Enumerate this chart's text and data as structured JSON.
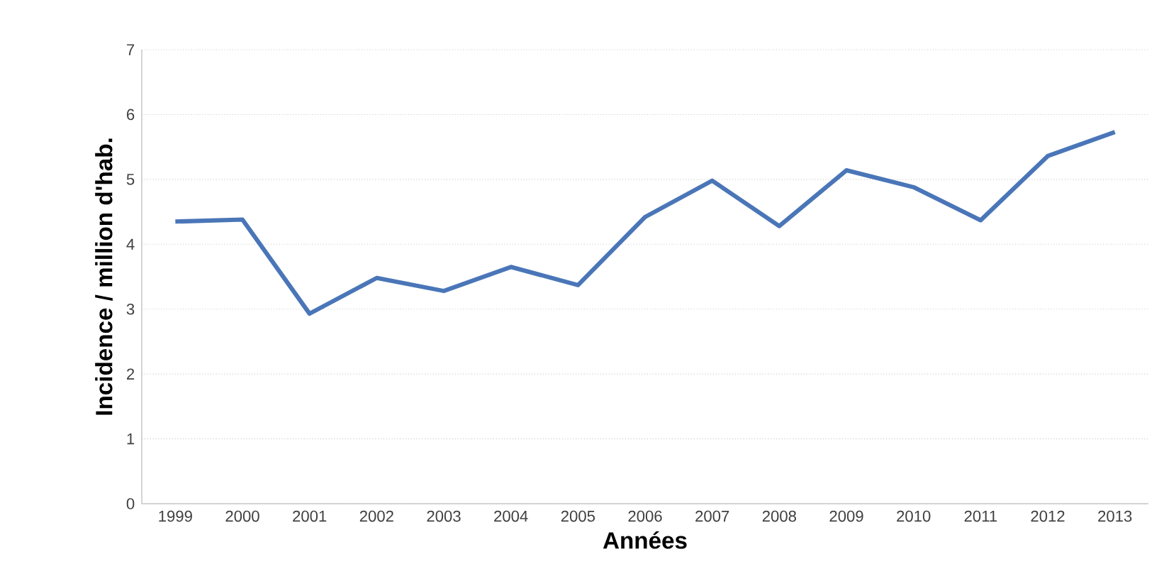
{
  "chart_data": {
    "type": "line",
    "xlabel": "Années",
    "ylabel": "Incidence / million d'hab.",
    "categories": [
      "1999",
      "2000",
      "2001",
      "2002",
      "2003",
      "2004",
      "2005",
      "2006",
      "2007",
      "2008",
      "2009",
      "2010",
      "2011",
      "2012",
      "2013"
    ],
    "series": [
      {
        "color": "#4a76b8",
        "values": [
          4.35,
          4.38,
          2.93,
          3.48,
          3.28,
          3.65,
          3.37,
          4.42,
          4.98,
          4.28,
          5.14,
          4.88,
          4.37,
          5.36,
          5.73
        ]
      }
    ],
    "ylim": [
      0,
      7
    ],
    "yticks": [
      0,
      1,
      2,
      3,
      4,
      5,
      6,
      7
    ],
    "grid": "y",
    "marker": "none",
    "line_style": "solid"
  }
}
